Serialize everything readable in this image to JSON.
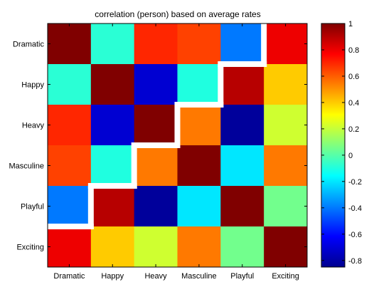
{
  "chart_data": {
    "type": "heatmap",
    "title": "correlation (person) based on average rates",
    "xlabel": "",
    "ylabel": "",
    "x_categories": [
      "Dramatic",
      "Happy",
      "Heavy",
      "Masculine",
      "Playful",
      "Exciting"
    ],
    "y_categories": [
      "Dramatic",
      "Happy",
      "Heavy",
      "Masculine",
      "Playful",
      "Exciting"
    ],
    "values": [
      [
        1.0,
        -0.08,
        0.7,
        0.65,
        -0.4,
        0.8
      ],
      [
        -0.08,
        1.0,
        -0.7,
        -0.1,
        0.9,
        0.4
      ],
      [
        0.7,
        -0.7,
        1.0,
        0.55,
        -0.8,
        0.22
      ],
      [
        0.65,
        -0.1,
        0.55,
        1.0,
        -0.2,
        0.55
      ],
      [
        -0.4,
        0.9,
        -0.8,
        -0.2,
        1.0,
        0.05
      ],
      [
        0.8,
        0.4,
        0.22,
        0.55,
        0.05,
        1.0
      ]
    ],
    "colormap": "jet",
    "clim": [
      -0.85,
      1.0
    ],
    "colorbar_ticks": [
      1,
      0.8,
      0.6,
      0.4,
      0.2,
      0,
      -0.2,
      -0.4,
      -0.6,
      -0.8
    ],
    "colorbar_tick_labels": [
      "1",
      "0.8",
      "0.6",
      "0.4",
      "0.2",
      "0",
      "-0.2",
      "-0.4",
      "-0.6",
      "-0.8"
    ],
    "grid": false,
    "legend": "colorbar-right"
  }
}
